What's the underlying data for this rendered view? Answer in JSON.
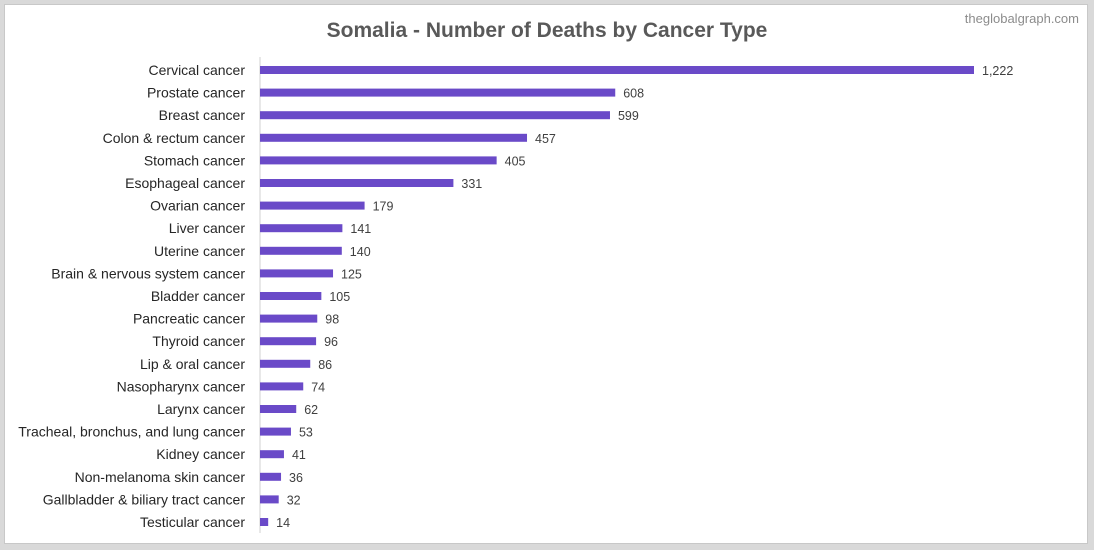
{
  "title": "Somalia - Number of Deaths by Cancer Type",
  "watermark": "theglobalgraph.com",
  "chart_data": {
    "type": "bar",
    "orientation": "horizontal",
    "title": "Somalia - Number of Deaths by Cancer Type",
    "xlabel": "",
    "ylabel": "",
    "grid": false,
    "legend": "none",
    "bar_color": "#6a4ac8",
    "xlim": [
      0,
      1222
    ],
    "categories": [
      "Cervical cancer",
      "Prostate cancer",
      "Breast cancer",
      "Colon & rectum cancer",
      "Stomach cancer",
      "Esophageal cancer",
      "Ovarian cancer",
      "Liver cancer",
      "Uterine cancer",
      "Brain & nervous system cancer",
      "Bladder cancer",
      "Pancreatic cancer",
      "Thyroid cancer",
      "Lip & oral cancer",
      "Nasopharynx cancer",
      "Larynx cancer",
      "Tracheal, bronchus, and lung cancer",
      "Kidney cancer",
      "Non-melanoma skin cancer",
      "Gallbladder & biliary tract cancer",
      "Testicular cancer"
    ],
    "values": [
      1222,
      608,
      599,
      457,
      405,
      331,
      179,
      141,
      140,
      125,
      105,
      98,
      96,
      86,
      74,
      62,
      53,
      41,
      36,
      32,
      14
    ],
    "value_labels": [
      "1,222",
      "608",
      "599",
      "457",
      "405",
      "331",
      "179",
      "141",
      "140",
      "125",
      "105",
      "98",
      "96",
      "86",
      "74",
      "62",
      "53",
      "41",
      "36",
      "32",
      "14"
    ]
  }
}
